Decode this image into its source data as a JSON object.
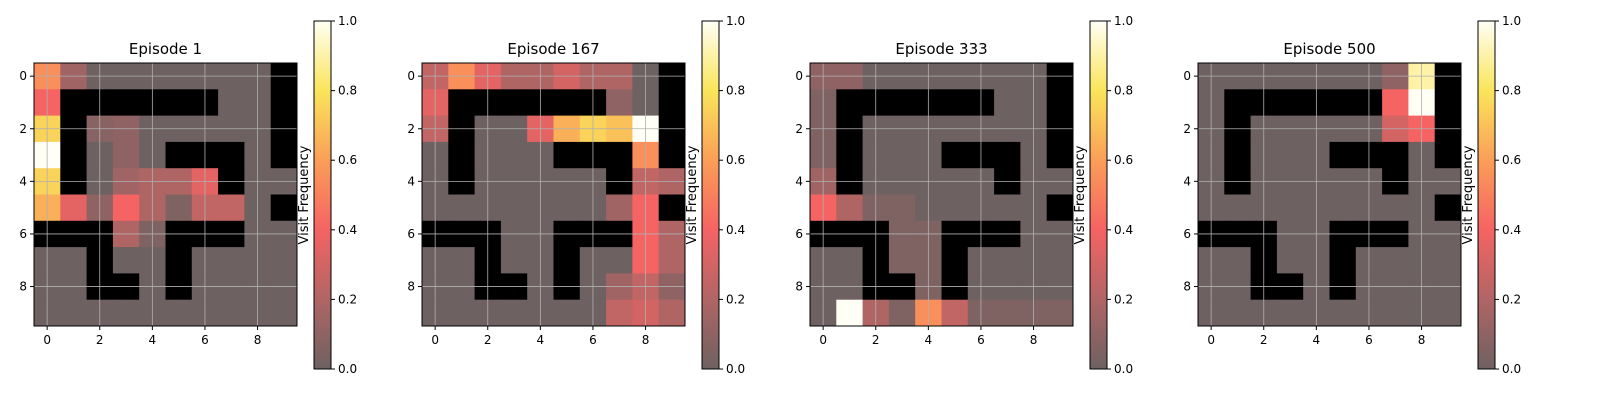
{
  "figure": {
    "colorbar_label": "Visit Frequency"
  },
  "chart_data": [
    {
      "type": "heatmap",
      "title": "Episode 1",
      "x_ticks": [
        "0",
        "2",
        "4",
        "6",
        "8"
      ],
      "y_ticks": [
        "0",
        "2",
        "4",
        "6",
        "8"
      ],
      "colorbar": {
        "label": "Visit Frequency",
        "ticks": [
          "0.0",
          "0.2",
          "0.4",
          "0.6",
          "0.8",
          "1.0"
        ],
        "range": [
          0,
          1
        ]
      },
      "grid": true,
      "walls": [
        [
          0,
          0,
          0,
          0,
          0,
          0,
          0,
          0,
          0,
          1
        ],
        [
          0,
          1,
          1,
          1,
          1,
          1,
          1,
          0,
          0,
          1
        ],
        [
          0,
          1,
          0,
          0,
          0,
          0,
          0,
          0,
          0,
          1
        ],
        [
          0,
          1,
          0,
          0,
          0,
          1,
          1,
          1,
          0,
          1
        ],
        [
          0,
          1,
          0,
          0,
          0,
          0,
          0,
          1,
          0,
          0
        ],
        [
          0,
          0,
          0,
          0,
          0,
          0,
          0,
          0,
          0,
          1
        ],
        [
          1,
          1,
          1,
          0,
          0,
          1,
          1,
          1,
          0,
          0
        ],
        [
          0,
          0,
          1,
          0,
          0,
          1,
          0,
          0,
          0,
          0
        ],
        [
          0,
          0,
          1,
          1,
          0,
          1,
          0,
          0,
          0,
          0
        ],
        [
          0,
          0,
          0,
          0,
          0,
          0,
          0,
          0,
          0,
          0
        ]
      ],
      "values": [
        [
          0.55,
          0.15,
          0,
          0,
          0,
          0,
          0,
          0,
          0,
          0
        ],
        [
          0.4,
          0,
          0,
          0,
          0,
          0,
          0,
          0,
          0,
          0
        ],
        [
          0.75,
          0,
          0.08,
          0.1,
          0,
          0,
          0,
          0,
          0,
          0
        ],
        [
          1.0,
          0,
          0,
          0.1,
          0,
          0,
          0,
          0,
          0,
          0
        ],
        [
          0.75,
          0,
          0,
          0.15,
          0.2,
          0.2,
          0.35,
          0,
          0,
          0
        ],
        [
          0.65,
          0.35,
          0.1,
          0.4,
          0.2,
          0.05,
          0.25,
          0.25,
          0,
          0
        ],
        [
          0,
          0,
          0,
          0.2,
          0.05,
          0,
          0,
          0,
          0,
          0
        ],
        [
          0,
          0,
          0,
          0,
          0,
          0,
          0,
          0,
          0,
          0
        ],
        [
          0,
          0,
          0,
          0,
          0,
          0,
          0,
          0,
          0,
          0
        ],
        [
          0,
          0,
          0,
          0,
          0,
          0,
          0,
          0,
          0,
          0
        ]
      ]
    },
    {
      "type": "heatmap",
      "title": "Episode 167",
      "x_ticks": [
        "0",
        "2",
        "4",
        "6",
        "8"
      ],
      "y_ticks": [
        "0",
        "2",
        "4",
        "6",
        "8"
      ],
      "colorbar": {
        "label": "Visit Frequency",
        "ticks": [
          "0.0",
          "0.2",
          "0.4",
          "0.6",
          "0.8",
          "1.0"
        ],
        "range": [
          0,
          1
        ]
      },
      "grid": true,
      "walls": [
        [
          0,
          0,
          0,
          0,
          0,
          0,
          0,
          0,
          0,
          1
        ],
        [
          0,
          1,
          1,
          1,
          1,
          1,
          1,
          0,
          0,
          1
        ],
        [
          0,
          1,
          0,
          0,
          0,
          0,
          0,
          0,
          0,
          1
        ],
        [
          0,
          1,
          0,
          0,
          0,
          1,
          1,
          1,
          0,
          1
        ],
        [
          0,
          1,
          0,
          0,
          0,
          0,
          0,
          1,
          0,
          0
        ],
        [
          0,
          0,
          0,
          0,
          0,
          0,
          0,
          0,
          0,
          1
        ],
        [
          1,
          1,
          1,
          0,
          0,
          1,
          1,
          1,
          0,
          0
        ],
        [
          0,
          0,
          1,
          0,
          0,
          1,
          0,
          0,
          0,
          0
        ],
        [
          0,
          0,
          1,
          1,
          0,
          1,
          0,
          0,
          0,
          0
        ],
        [
          0,
          0,
          0,
          0,
          0,
          0,
          0,
          0,
          0,
          0
        ]
      ],
      "values": [
        [
          0.25,
          0.55,
          0.35,
          0.2,
          0.2,
          0.3,
          0.2,
          0.2,
          0,
          0
        ],
        [
          0.35,
          0,
          0,
          0,
          0,
          0,
          0,
          0.1,
          0,
          0
        ],
        [
          0.25,
          0,
          0,
          0,
          0.35,
          0.65,
          0.75,
          0.7,
          1.0,
          0
        ],
        [
          0,
          0,
          0,
          0,
          0,
          0,
          0,
          0,
          0.55,
          0
        ],
        [
          0,
          0,
          0,
          0,
          0,
          0,
          0,
          0,
          0.25,
          0.2
        ],
        [
          0,
          0,
          0,
          0,
          0,
          0,
          0,
          0.15,
          0.4,
          0
        ],
        [
          0,
          0,
          0,
          0,
          0,
          0,
          0,
          0,
          0.4,
          0.2
        ],
        [
          0,
          0,
          0,
          0,
          0,
          0,
          0,
          0,
          0.4,
          0.2
        ],
        [
          0,
          0,
          0,
          0,
          0,
          0,
          0,
          0.15,
          0.25,
          0.1
        ],
        [
          0,
          0,
          0,
          0,
          0,
          0,
          0,
          0.25,
          0.3,
          0.2
        ]
      ]
    },
    {
      "type": "heatmap",
      "title": "Episode 333",
      "x_ticks": [
        "0",
        "2",
        "4",
        "6",
        "8"
      ],
      "y_ticks": [
        "0",
        "2",
        "4",
        "6",
        "8"
      ],
      "colorbar": {
        "label": "Visit Frequency",
        "ticks": [
          "0.0",
          "0.2",
          "0.4",
          "0.6",
          "0.8",
          "1.0"
        ],
        "range": [
          0,
          1
        ]
      },
      "grid": true,
      "walls": [
        [
          0,
          0,
          0,
          0,
          0,
          0,
          0,
          0,
          0,
          1
        ],
        [
          0,
          1,
          1,
          1,
          1,
          1,
          1,
          0,
          0,
          1
        ],
        [
          0,
          1,
          0,
          0,
          0,
          0,
          0,
          0,
          0,
          1
        ],
        [
          0,
          1,
          0,
          0,
          0,
          1,
          1,
          1,
          0,
          1
        ],
        [
          0,
          1,
          0,
          0,
          0,
          0,
          0,
          1,
          0,
          0
        ],
        [
          0,
          0,
          0,
          0,
          0,
          0,
          0,
          0,
          0,
          1
        ],
        [
          1,
          1,
          1,
          0,
          0,
          1,
          1,
          1,
          0,
          0
        ],
        [
          0,
          0,
          1,
          0,
          0,
          1,
          0,
          0,
          0,
          0
        ],
        [
          0,
          0,
          1,
          1,
          0,
          1,
          0,
          0,
          0,
          0
        ],
        [
          0,
          0,
          0,
          0,
          0,
          0,
          0,
          0,
          0,
          0
        ]
      ],
      "values": [
        [
          0.1,
          0.1,
          0,
          0,
          0,
          0,
          0,
          0,
          0,
          0
        ],
        [
          0.05,
          0,
          0,
          0,
          0,
          0,
          0,
          0,
          0,
          0
        ],
        [
          0.05,
          0,
          0,
          0,
          0,
          0,
          0,
          0,
          0,
          0
        ],
        [
          0.05,
          0,
          0,
          0,
          0,
          0,
          0,
          0,
          0,
          0
        ],
        [
          0.15,
          0,
          0,
          0,
          0,
          0,
          0,
          0,
          0,
          0
        ],
        [
          0.4,
          0.2,
          0.05,
          0.05,
          0,
          0,
          0,
          0,
          0,
          0
        ],
        [
          0,
          0,
          0,
          0.05,
          0.05,
          0,
          0,
          0,
          0,
          0
        ],
        [
          0,
          0,
          0,
          0.05,
          0.05,
          0,
          0,
          0,
          0,
          0
        ],
        [
          0,
          0,
          0,
          0,
          0.05,
          0,
          0,
          0,
          0,
          0
        ],
        [
          0,
          1.0,
          0.2,
          0.05,
          0.55,
          0.25,
          0.05,
          0.05,
          0.05,
          0.05
        ]
      ]
    },
    {
      "type": "heatmap",
      "title": "Episode 500",
      "x_ticks": [
        "0",
        "2",
        "4",
        "6",
        "8"
      ],
      "y_ticks": [
        "0",
        "2",
        "4",
        "6",
        "8"
      ],
      "colorbar": {
        "label": "Visit Frequency",
        "ticks": [
          "0.0",
          "0.2",
          "0.4",
          "0.6",
          "0.8",
          "1.0"
        ],
        "range": [
          0,
          1
        ]
      },
      "grid": true,
      "walls": [
        [
          0,
          0,
          0,
          0,
          0,
          0,
          0,
          0,
          0,
          1
        ],
        [
          0,
          1,
          1,
          1,
          1,
          1,
          1,
          0,
          0,
          1
        ],
        [
          0,
          1,
          0,
          0,
          0,
          0,
          0,
          0,
          0,
          1
        ],
        [
          0,
          1,
          0,
          0,
          0,
          1,
          1,
          1,
          0,
          1
        ],
        [
          0,
          1,
          0,
          0,
          0,
          0,
          0,
          1,
          0,
          0
        ],
        [
          0,
          0,
          0,
          0,
          0,
          0,
          0,
          0,
          0,
          1
        ],
        [
          1,
          1,
          1,
          0,
          0,
          1,
          1,
          1,
          0,
          0
        ],
        [
          0,
          0,
          1,
          0,
          0,
          1,
          0,
          0,
          0,
          0
        ],
        [
          0,
          0,
          1,
          1,
          0,
          1,
          0,
          0,
          0,
          0
        ],
        [
          0,
          0,
          0,
          0,
          0,
          0,
          0,
          0,
          0,
          0
        ]
      ],
      "values": [
        [
          0,
          0,
          0,
          0,
          0,
          0,
          0,
          0.1,
          0.9,
          0
        ],
        [
          0,
          0,
          0,
          0,
          0,
          0,
          0,
          0.4,
          1.0,
          0
        ],
        [
          0,
          0,
          0,
          0,
          0,
          0,
          0,
          0.3,
          0.4,
          0
        ],
        [
          0,
          0,
          0,
          0,
          0,
          0,
          0,
          0,
          0,
          0
        ],
        [
          0,
          0,
          0,
          0,
          0,
          0,
          0,
          0,
          0,
          0
        ],
        [
          0,
          0,
          0,
          0,
          0,
          0,
          0,
          0,
          0,
          0
        ],
        [
          0,
          0,
          0,
          0,
          0,
          0,
          0,
          0,
          0,
          0
        ],
        [
          0,
          0,
          0,
          0,
          0,
          0,
          0,
          0,
          0,
          0
        ],
        [
          0,
          0,
          0,
          0,
          0,
          0,
          0,
          0,
          0,
          0
        ],
        [
          0,
          0,
          0,
          0,
          0,
          0,
          0,
          0,
          0,
          0
        ]
      ]
    }
  ]
}
